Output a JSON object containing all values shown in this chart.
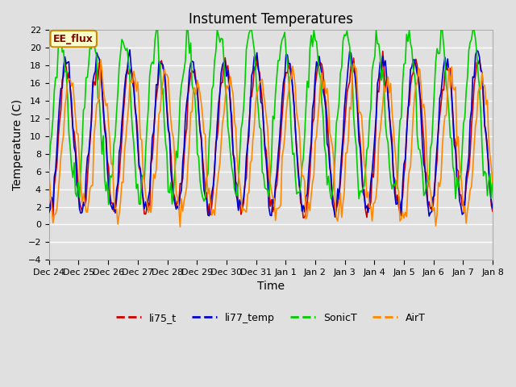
{
  "title": "Instument Temperatures",
  "xlabel": "Time",
  "ylabel": "Temperature (C)",
  "ylim": [
    -4,
    22
  ],
  "yticks": [
    -4,
    -2,
    0,
    2,
    4,
    6,
    8,
    10,
    12,
    14,
    16,
    18,
    20,
    22
  ],
  "background_color": "#e0e0e0",
  "plot_bg_color": "#e0e0e0",
  "grid_color": "#ffffff",
  "colors": {
    "li75_t": "#cc0000",
    "li77_temp": "#0000cc",
    "SonicT": "#00cc00",
    "AirT": "#ff8800"
  },
  "annotation_text": "EE_flux",
  "annotation_bg": "#ffffcc",
  "annotation_border": "#cc8800",
  "legend_dash_colors": [
    "#cc0000",
    "#0000cc",
    "#00cc00",
    "#ff8800"
  ],
  "legend_labels": [
    "li75_t",
    "li77_temp",
    "SonicT",
    "AirT"
  ],
  "x_tick_labels": [
    "Dec 24",
    "Dec 25",
    "Dec 26",
    "Dec 27",
    "Dec 28",
    "Dec 29",
    "Dec 30",
    "Dec 31",
    "Jan 1",
    "Jan 2",
    "Jan 3",
    "Jan 4",
    "Jan 5",
    "Jan 6",
    "Jan 7",
    "Jan 8"
  ],
  "n_points": 336,
  "title_fontsize": 12,
  "axis_fontsize": 10,
  "tick_fontsize": 8
}
